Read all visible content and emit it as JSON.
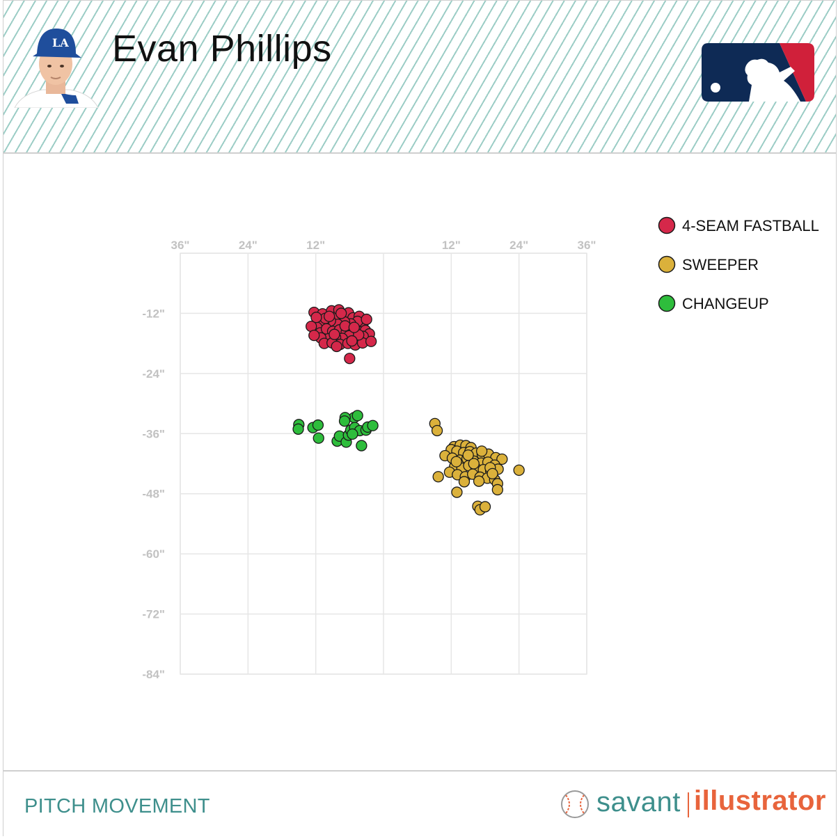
{
  "header": {
    "player_name": "Evan Phillips",
    "team_cap_icon": "dodgers-cap-icon",
    "league_logo_icon": "mlb-logo-icon"
  },
  "footer": {
    "title": "PITCH MOVEMENT",
    "brand_part1": "savant",
    "brand_part2": "illustrator"
  },
  "colors": {
    "accent_teal": "#3e8f8c",
    "brand_orange": "#e8643c",
    "fastball": "#d5284a",
    "sweeper": "#dbb13b",
    "changeup": "#2ebd3c"
  },
  "chart_data": {
    "type": "scatter",
    "title": "",
    "xlabel": "",
    "ylabel": "",
    "xlim": [
      -36,
      36
    ],
    "ylim": [
      -84,
      0
    ],
    "x_ticks": [
      {
        "value": -36,
        "label": "36\""
      },
      {
        "value": -24,
        "label": "24\""
      },
      {
        "value": -12,
        "label": "12\""
      },
      {
        "value": 12,
        "label": "12\""
      },
      {
        "value": 24,
        "label": "24\""
      },
      {
        "value": 36,
        "label": "36\""
      }
    ],
    "y_ticks": [
      {
        "value": -12,
        "label": "-12\""
      },
      {
        "value": -24,
        "label": "-24\""
      },
      {
        "value": -36,
        "label": "-36\""
      },
      {
        "value": -48,
        "label": "-48\""
      },
      {
        "value": -60,
        "label": "-60\""
      },
      {
        "value": -72,
        "label": "-72\""
      },
      {
        "value": -84,
        "label": "-84\""
      }
    ],
    "grid": true,
    "legend_position": "top-right",
    "series": [
      {
        "name": "4-SEAM FASTBALL",
        "color": "#d5284a",
        "points": [
          [
            -12.3,
            -11.8
          ],
          [
            -11.5,
            -13.2
          ],
          [
            -10.8,
            -12.1
          ],
          [
            -9.2,
            -11.5
          ],
          [
            -8.6,
            -12.8
          ],
          [
            -7.9,
            -11.3
          ],
          [
            -7.1,
            -12.4
          ],
          [
            -6.2,
            -11.9
          ],
          [
            -5.4,
            -12.9
          ],
          [
            -4.3,
            -12.6
          ],
          [
            -3.6,
            -13.9
          ],
          [
            -4.6,
            -13.6
          ],
          [
            -5.8,
            -14.1
          ],
          [
            -6.9,
            -13.7
          ],
          [
            -8.1,
            -14.2
          ],
          [
            -9.4,
            -13.5
          ],
          [
            -10.6,
            -14.0
          ],
          [
            -11.8,
            -14.8
          ],
          [
            -12.8,
            -14.6
          ],
          [
            -11.2,
            -15.9
          ],
          [
            -10.1,
            -15.1
          ],
          [
            -9.0,
            -15.6
          ],
          [
            -7.8,
            -15.3
          ],
          [
            -6.6,
            -15.8
          ],
          [
            -5.3,
            -15.2
          ],
          [
            -4.2,
            -15.7
          ],
          [
            -3.2,
            -15.4
          ],
          [
            -2.5,
            -16.1
          ],
          [
            -3.6,
            -16.6
          ],
          [
            -4.9,
            -16.9
          ],
          [
            -6.1,
            -16.5
          ],
          [
            -7.3,
            -17.0
          ],
          [
            -8.5,
            -16.8
          ],
          [
            -9.8,
            -17.1
          ],
          [
            -11.1,
            -16.9
          ],
          [
            -12.3,
            -16.4
          ],
          [
            -10.5,
            -18.0
          ],
          [
            -9.1,
            -17.9
          ],
          [
            -7.7,
            -18.2
          ],
          [
            -6.3,
            -18.0
          ],
          [
            -5.0,
            -18.3
          ],
          [
            -3.7,
            -17.9
          ],
          [
            -2.2,
            -17.6
          ],
          [
            -4.4,
            -16.3
          ],
          [
            -8.7,
            -16.2
          ],
          [
            -10.3,
            -13.0
          ],
          [
            -6.8,
            -14.5
          ],
          [
            -5.6,
            -17.5
          ],
          [
            -7.5,
            -12.0
          ],
          [
            -9.6,
            -12.6
          ],
          [
            -6.0,
            -21.0
          ],
          [
            -11.9,
            -12.8
          ],
          [
            -3.0,
            -13.2
          ],
          [
            -8.3,
            -18.6
          ],
          [
            -5.2,
            -14.8
          ]
        ]
      },
      {
        "name": "SWEEPER",
        "color": "#dbb13b",
        "points": [
          [
            9.1,
            -34.0
          ],
          [
            9.5,
            -35.4
          ],
          [
            12.5,
            -38.6
          ],
          [
            13.6,
            -38.3
          ],
          [
            14.6,
            -38.4
          ],
          [
            15.5,
            -38.8
          ],
          [
            12.0,
            -39.2
          ],
          [
            13.0,
            -39.5
          ],
          [
            14.2,
            -39.8
          ],
          [
            15.3,
            -39.6
          ],
          [
            16.4,
            -39.9
          ],
          [
            17.5,
            -40.2
          ],
          [
            18.6,
            -40.1
          ],
          [
            19.9,
            -40.8
          ],
          [
            21.0,
            -41.1
          ],
          [
            10.9,
            -40.4
          ],
          [
            12.2,
            -40.9
          ],
          [
            13.5,
            -41.3
          ],
          [
            14.8,
            -41.0
          ],
          [
            16.0,
            -41.5
          ],
          [
            17.3,
            -41.9
          ],
          [
            18.5,
            -41.7
          ],
          [
            19.7,
            -42.3
          ],
          [
            12.6,
            -42.6
          ],
          [
            13.9,
            -42.9
          ],
          [
            15.1,
            -42.4
          ],
          [
            16.4,
            -43.0
          ],
          [
            17.7,
            -43.2
          ],
          [
            19.0,
            -43.5
          ],
          [
            20.3,
            -43.1
          ],
          [
            11.7,
            -43.7
          ],
          [
            13.1,
            -44.2
          ],
          [
            14.5,
            -44.6
          ],
          [
            15.8,
            -44.1
          ],
          [
            17.1,
            -44.7
          ],
          [
            18.4,
            -44.9
          ],
          [
            19.7,
            -45.2
          ],
          [
            20.2,
            -46.0
          ],
          [
            14.3,
            -45.6
          ],
          [
            16.9,
            -45.5
          ],
          [
            24.0,
            -43.3
          ],
          [
            9.7,
            -44.6
          ],
          [
            13.0,
            -47.7
          ],
          [
            16.7,
            -50.5
          ],
          [
            17.1,
            -51.2
          ],
          [
            18.0,
            -50.6
          ],
          [
            20.2,
            -47.2
          ],
          [
            17.4,
            -39.5
          ],
          [
            15.0,
            -40.3
          ],
          [
            18.9,
            -42.8
          ],
          [
            12.9,
            -41.6
          ],
          [
            16.0,
            -42.0
          ],
          [
            19.3,
            -44.0
          ]
        ]
      },
      {
        "name": "CHANGEUP",
        "color": "#2ebd3c",
        "points": [
          [
            -15.0,
            -34.2
          ],
          [
            -15.1,
            -35.1
          ],
          [
            -12.5,
            -34.8
          ],
          [
            -11.6,
            -34.3
          ],
          [
            -11.5,
            -36.9
          ],
          [
            -8.2,
            -37.5
          ],
          [
            -7.8,
            -36.5
          ],
          [
            -6.6,
            -37.7
          ],
          [
            -6.2,
            -36.3
          ],
          [
            -5.8,
            -35.3
          ],
          [
            -5.2,
            -32.8
          ],
          [
            -6.8,
            -32.8
          ],
          [
            -6.9,
            -33.5
          ],
          [
            -5.1,
            -34.8
          ],
          [
            -4.2,
            -35.4
          ],
          [
            -5.5,
            -36.1
          ],
          [
            -3.9,
            -38.4
          ],
          [
            -3.1,
            -35.3
          ],
          [
            -2.8,
            -34.7
          ],
          [
            -1.9,
            -34.4
          ],
          [
            -4.6,
            -32.4
          ]
        ]
      }
    ]
  }
}
